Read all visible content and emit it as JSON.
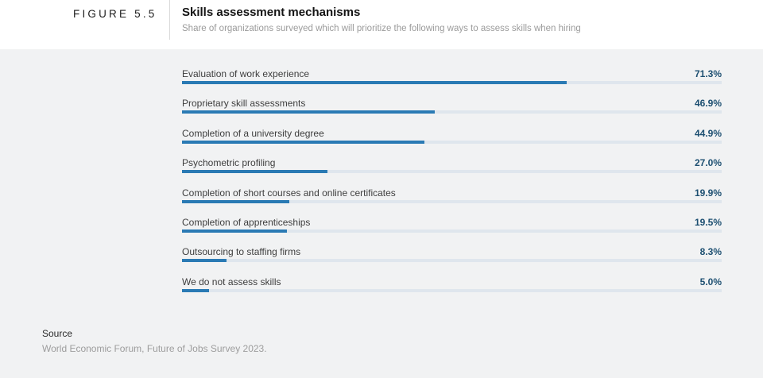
{
  "header": {
    "figure_label": "FIGURE 5.5",
    "title": "Skills assessment mechanisms",
    "subtitle": "Share of organizations surveyed which will prioritize the following ways to assess skills when hiring"
  },
  "chart_data": {
    "type": "bar",
    "orientation": "horizontal",
    "title": "Skills assessment mechanisms",
    "subtitle": "Share of organizations surveyed which will prioritize the following ways to assess skills when hiring",
    "unit": "%",
    "xlim": [
      0,
      100
    ],
    "grid": false,
    "legend": false,
    "categories": [
      "Evaluation of work experience",
      "Proprietary skill assessments",
      "Completion of a university degree",
      "Psychometric profiling",
      "Completion of short courses and online certificates",
      "Completion of apprenticeships",
      "Outsourcing to staffing firms",
      "We do not assess skills"
    ],
    "values": [
      71.3,
      46.9,
      44.9,
      27.0,
      19.9,
      19.5,
      8.3,
      5.0
    ],
    "value_labels": [
      "71.3%",
      "46.9%",
      "44.9%",
      "27.0%",
      "19.9%",
      "19.5%",
      "8.3%",
      "5.0%"
    ],
    "colors": {
      "bar_fill": "#2a7ab4",
      "bar_track": "#dfe6ed",
      "value_text": "#1d4f71",
      "label_text": "#3e3e3e",
      "section_background": "#f1f2f3"
    }
  },
  "source": {
    "label": "Source",
    "text": "World Economic Forum, Future of Jobs Survey 2023."
  }
}
